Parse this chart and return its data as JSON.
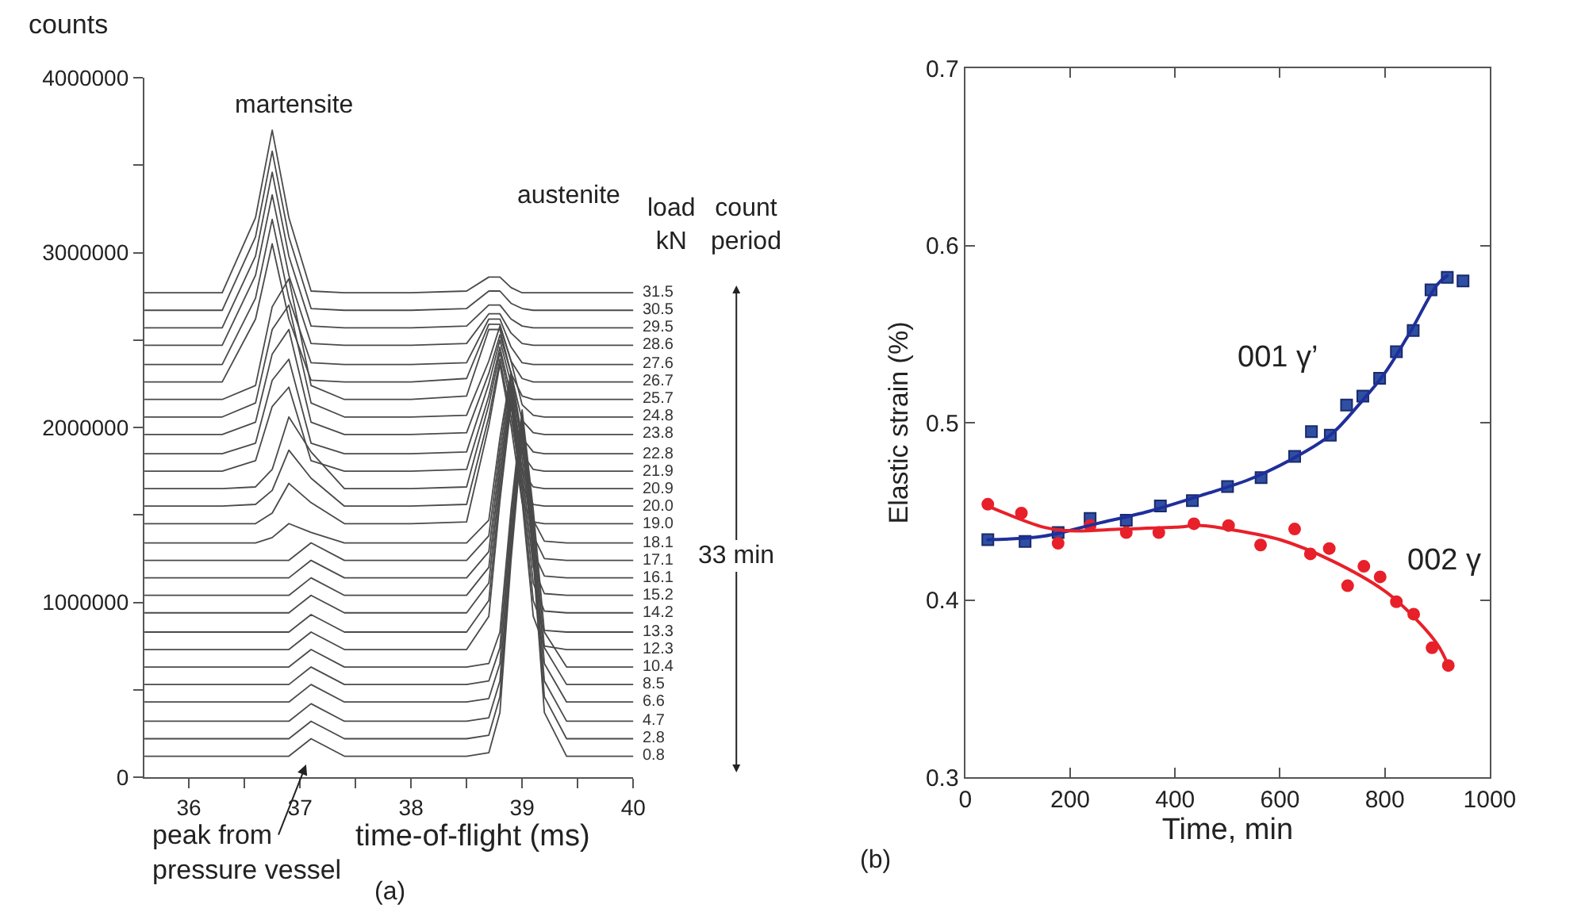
{
  "chart_data": [
    {
      "type": "line",
      "xlabel": "time-of-flight (ms)",
      "ylabel": "counts",
      "legend_title": "load\nkN",
      "x": [
        35.6,
        36.3,
        36.6,
        36.75,
        36.9,
        37.1,
        37.4,
        38.0,
        38.5,
        38.7,
        38.8,
        38.9,
        39.0,
        39.1,
        39.2,
        39.4,
        40.0
      ],
      "xlim": [
        35.6,
        40
      ],
      "xticks": [
        36,
        {
          "value": 36.5,
          "label": null
        },
        37,
        {
          "value": 37.5,
          "label": null
        },
        38,
        {
          "value": 38.5,
          "label": null
        },
        39,
        {
          "value": 39.5,
          "label": null
        },
        40
      ],
      "ylim": [
        0,
        4000000
      ],
      "yticks": [
        0,
        {
          "value": 500000,
          "label": null
        },
        1000000,
        {
          "value": 1500000,
          "label": null
        },
        2000000,
        {
          "value": 2500000,
          "label": null
        },
        3000000,
        {
          "value": 3500000,
          "label": null
        },
        4000000
      ],
      "series": [
        {
          "name": "0.8",
          "color": "#4a4a4a",
          "values": [
            120000,
            120000,
            120000,
            120000,
            120000,
            220000,
            120000,
            120000,
            120000,
            140000,
            370000,
            1240000,
            1950000,
            1240000,
            370000,
            120000,
            120000
          ]
        },
        {
          "name": "2.8",
          "color": "#4a4a4a",
          "values": [
            220000,
            220000,
            220000,
            220000,
            220000,
            320000,
            220000,
            220000,
            220000,
            240000,
            460000,
            1290000,
            1980000,
            1290000,
            460000,
            220000,
            220000
          ]
        },
        {
          "name": "4.7",
          "color": "#4a4a4a",
          "values": [
            320000,
            320000,
            320000,
            320000,
            320000,
            420000,
            320000,
            320000,
            320000,
            340000,
            550000,
            1350000,
            2010000,
            1350000,
            550000,
            320000,
            320000
          ]
        },
        {
          "name": "6.6",
          "color": "#4a4a4a",
          "values": [
            430000,
            430000,
            430000,
            430000,
            430000,
            530000,
            430000,
            430000,
            430000,
            450000,
            650000,
            1410000,
            2040000,
            1410000,
            650000,
            430000,
            430000
          ]
        },
        {
          "name": "8.5",
          "color": "#4a4a4a",
          "values": [
            530000,
            530000,
            530000,
            530000,
            530000,
            630000,
            530000,
            530000,
            530000,
            550000,
            740000,
            1470000,
            2070000,
            1470000,
            740000,
            530000,
            530000
          ]
        },
        {
          "name": "10.4",
          "color": "#4a4a4a",
          "values": [
            630000,
            630000,
            630000,
            630000,
            630000,
            730000,
            630000,
            630000,
            630000,
            650000,
            830000,
            1530000,
            2100000,
            1530000,
            830000,
            630000,
            630000
          ]
        },
        {
          "name": "12.3",
          "color": "#4a4a4a",
          "values": [
            730000,
            730000,
            730000,
            730000,
            730000,
            830000,
            730000,
            730000,
            730000,
            920000,
            1580000,
            2130000,
            1580000,
            920000,
            750000,
            730000,
            730000
          ]
        },
        {
          "name": "13.3",
          "color": "#4a4a4a",
          "values": [
            830000,
            830000,
            830000,
            830000,
            830000,
            930000,
            830000,
            830000,
            830000,
            1010000,
            1640000,
            2160000,
            1640000,
            1010000,
            840000,
            830000,
            830000
          ]
        },
        {
          "name": "14.2",
          "color": "#4a4a4a",
          "values": [
            940000,
            940000,
            940000,
            940000,
            940000,
            1040000,
            940000,
            940000,
            940000,
            1110000,
            1700000,
            2190000,
            1700000,
            1110000,
            950000,
            940000,
            940000
          ]
        },
        {
          "name": "15.2",
          "color": "#4a4a4a",
          "values": [
            1040000,
            1040000,
            1040000,
            1040000,
            1040000,
            1140000,
            1040000,
            1040000,
            1040000,
            1200000,
            1760000,
            2220000,
            1760000,
            1200000,
            1050000,
            1040000,
            1040000
          ]
        },
        {
          "name": "16.1",
          "color": "#4a4a4a",
          "values": [
            1140000,
            1140000,
            1140000,
            1140000,
            1140000,
            1240000,
            1140000,
            1140000,
            1140000,
            1290000,
            1820000,
            2250000,
            1820000,
            1290000,
            1150000,
            1140000,
            1140000
          ]
        },
        {
          "name": "17.1",
          "color": "#4a4a4a",
          "values": [
            1240000,
            1240000,
            1240000,
            1240000,
            1240000,
            1340000,
            1240000,
            1240000,
            1240000,
            1380000,
            1880000,
            2290000,
            1880000,
            1380000,
            1250000,
            1240000,
            1240000
          ]
        },
        {
          "name": "18.1",
          "color": "#4a4a4a",
          "values": [
            1340000,
            1340000,
            1340000,
            1370000,
            1450000,
            1400000,
            1340000,
            1340000,
            1340000,
            1470000,
            1940000,
            2320000,
            1940000,
            1470000,
            1350000,
            1340000,
            1340000
          ]
        },
        {
          "name": "19.0",
          "color": "#4a4a4a",
          "values": [
            1450000,
            1450000,
            1450000,
            1510000,
            1680000,
            1570000,
            1450000,
            1450000,
            1460000,
            2010000,
            2360000,
            2010000,
            1570000,
            1460000,
            1450000,
            1450000,
            1450000
          ]
        },
        {
          "name": "20.0",
          "color": "#4a4a4a",
          "values": [
            1550000,
            1550000,
            1560000,
            1640000,
            1870000,
            1710000,
            1550000,
            1550000,
            1560000,
            2060000,
            2390000,
            2060000,
            1660000,
            1560000,
            1550000,
            1550000,
            1550000
          ]
        },
        {
          "name": "20.9",
          "color": "#4a4a4a",
          "values": [
            1650000,
            1650000,
            1660000,
            1760000,
            2060000,
            1860000,
            1650000,
            1650000,
            1660000,
            2130000,
            2430000,
            2130000,
            1750000,
            1660000,
            1650000,
            1650000,
            1650000
          ]
        },
        {
          "name": "21.9",
          "color": "#4a4a4a",
          "values": [
            1750000,
            1750000,
            1810000,
            2120000,
            2230000,
            1810000,
            1750000,
            1750000,
            1760000,
            2180000,
            2460000,
            2180000,
            1850000,
            1760000,
            1750000,
            1750000,
            1750000
          ]
        },
        {
          "name": "22.8",
          "color": "#4a4a4a",
          "values": [
            1850000,
            1850000,
            1910000,
            2270000,
            2390000,
            1910000,
            1850000,
            1850000,
            1860000,
            2250000,
            2500000,
            2250000,
            1940000,
            1860000,
            1850000,
            1850000,
            1850000
          ]
        },
        {
          "name": "23.8",
          "color": "#4a4a4a",
          "values": [
            1960000,
            1960000,
            2030000,
            2420000,
            2560000,
            2030000,
            1960000,
            1960000,
            1970000,
            2310000,
            2530000,
            2310000,
            2040000,
            1970000,
            1960000,
            1960000,
            1960000
          ]
        },
        {
          "name": "24.8",
          "color": "#4a4a4a",
          "values": [
            2060000,
            2060000,
            2140000,
            2560000,
            2700000,
            2140000,
            2060000,
            2060000,
            2070000,
            2380000,
            2580000,
            2380000,
            2130000,
            2070000,
            2060000,
            2060000,
            2060000
          ]
        },
        {
          "name": "25.7",
          "color": "#4a4a4a",
          "values": [
            2160000,
            2160000,
            2240000,
            2690000,
            2850000,
            2240000,
            2160000,
            2160000,
            2180000,
            2560000,
            2560000,
            2310000,
            2180000,
            2160000,
            2160000,
            2160000,
            2160000
          ]
        },
        {
          "name": "26.7",
          "color": "#4a4a4a",
          "values": [
            2260000,
            2260000,
            2620000,
            3050000,
            2620000,
            2270000,
            2260000,
            2260000,
            2280000,
            2590000,
            2590000,
            2380000,
            2280000,
            2260000,
            2260000,
            2260000,
            2260000
          ]
        },
        {
          "name": "27.6",
          "color": "#4a4a4a",
          "values": [
            2360000,
            2360000,
            2740000,
            3190000,
            2740000,
            2370000,
            2360000,
            2360000,
            2370000,
            2620000,
            2620000,
            2460000,
            2370000,
            2360000,
            2360000,
            2360000,
            2360000
          ]
        },
        {
          "name": "28.6",
          "color": "#4a4a4a",
          "values": [
            2470000,
            2470000,
            2870000,
            3330000,
            2870000,
            2480000,
            2470000,
            2470000,
            2480000,
            2650000,
            2650000,
            2540000,
            2480000,
            2470000,
            2470000,
            2470000,
            2470000
          ]
        },
        {
          "name": "29.5",
          "color": "#4a4a4a",
          "values": [
            2570000,
            2570000,
            2980000,
            3460000,
            2980000,
            2580000,
            2570000,
            2570000,
            2580000,
            2700000,
            2700000,
            2620000,
            2580000,
            2570000,
            2570000,
            2570000,
            2570000
          ]
        },
        {
          "name": "30.5",
          "color": "#4a4a4a",
          "values": [
            2670000,
            2670000,
            3090000,
            3580000,
            3090000,
            2680000,
            2670000,
            2670000,
            2680000,
            2780000,
            2780000,
            2710000,
            2680000,
            2670000,
            2670000,
            2670000,
            2670000
          ]
        },
        {
          "name": "31.5",
          "color": "#4a4a4a",
          "values": [
            2770000,
            2770000,
            3200000,
            3700000,
            3200000,
            2780000,
            2770000,
            2770000,
            2780000,
            2860000,
            2860000,
            2800000,
            2770000,
            2770000,
            2770000,
            2770000,
            2770000
          ]
        }
      ],
      "annotations": [
        "count\nperiod",
        "33 min",
        "martensite",
        "austenite",
        "peak from\npressure vessel",
        "(a)"
      ]
    },
    {
      "type": "scatter",
      "xlabel": "Time, min",
      "ylabel": "Elastic strain (%)",
      "xlim": [
        0,
        1000
      ],
      "xticks": [
        0,
        200,
        400,
        600,
        800,
        1000
      ],
      "ylim": [
        0.3,
        0.7
      ],
      "yticks": [
        0.3,
        0.4,
        0.5,
        0.6,
        0.7
      ],
      "series": [
        {
          "name": "001 γ’",
          "color": "#2e4fa3",
          "marker": "square",
          "x": [
            43,
            114,
            177,
            238,
            307,
            372,
            433,
            500,
            564,
            628,
            660,
            696,
            727,
            758,
            790,
            822,
            854,
            888,
            919,
            949
          ],
          "values": [
            0.434,
            0.433,
            0.438,
            0.446,
            0.445,
            0.453,
            0.456,
            0.464,
            0.469,
            0.481,
            0.495,
            0.493,
            0.51,
            0.515,
            0.525,
            0.54,
            0.552,
            0.575,
            0.582,
            0.58
          ]
        },
        {
          "name": "002 γ",
          "color": "#e8202a",
          "marker": "circle",
          "x": [
            43,
            107,
            177,
            238,
            307,
            369,
            436,
            502,
            563,
            628,
            658,
            694,
            729,
            760,
            791,
            822,
            855,
            890,
            921
          ],
          "values": [
            0.454,
            0.449,
            0.432,
            0.442,
            0.438,
            0.438,
            0.443,
            0.442,
            0.431,
            0.44,
            0.426,
            0.429,
            0.408,
            0.419,
            0.413,
            0.399,
            0.392,
            0.373,
            0.363
          ]
        },
        {
          "type": "line",
          "color": "#1f2f9a",
          "x": [
            43,
            150,
            250,
            350,
            450,
            550,
            650,
            700,
            750,
            800,
            850,
            900,
            919
          ],
          "values": [
            0.434,
            0.436,
            0.443,
            0.45,
            0.459,
            0.469,
            0.484,
            0.494,
            0.51,
            0.528,
            0.552,
            0.578,
            0.583
          ]
        },
        {
          "type": "line",
          "color": "#e8202a",
          "x": [
            43,
            150,
            200,
            300,
            400,
            450,
            500,
            600,
            700,
            800,
            850,
            900,
            921
          ],
          "values": [
            0.453,
            0.441,
            0.439,
            0.44,
            0.441,
            0.442,
            0.44,
            0.434,
            0.422,
            0.405,
            0.392,
            0.375,
            0.363
          ]
        }
      ],
      "annotations": [
        "(b)"
      ]
    }
  ]
}
